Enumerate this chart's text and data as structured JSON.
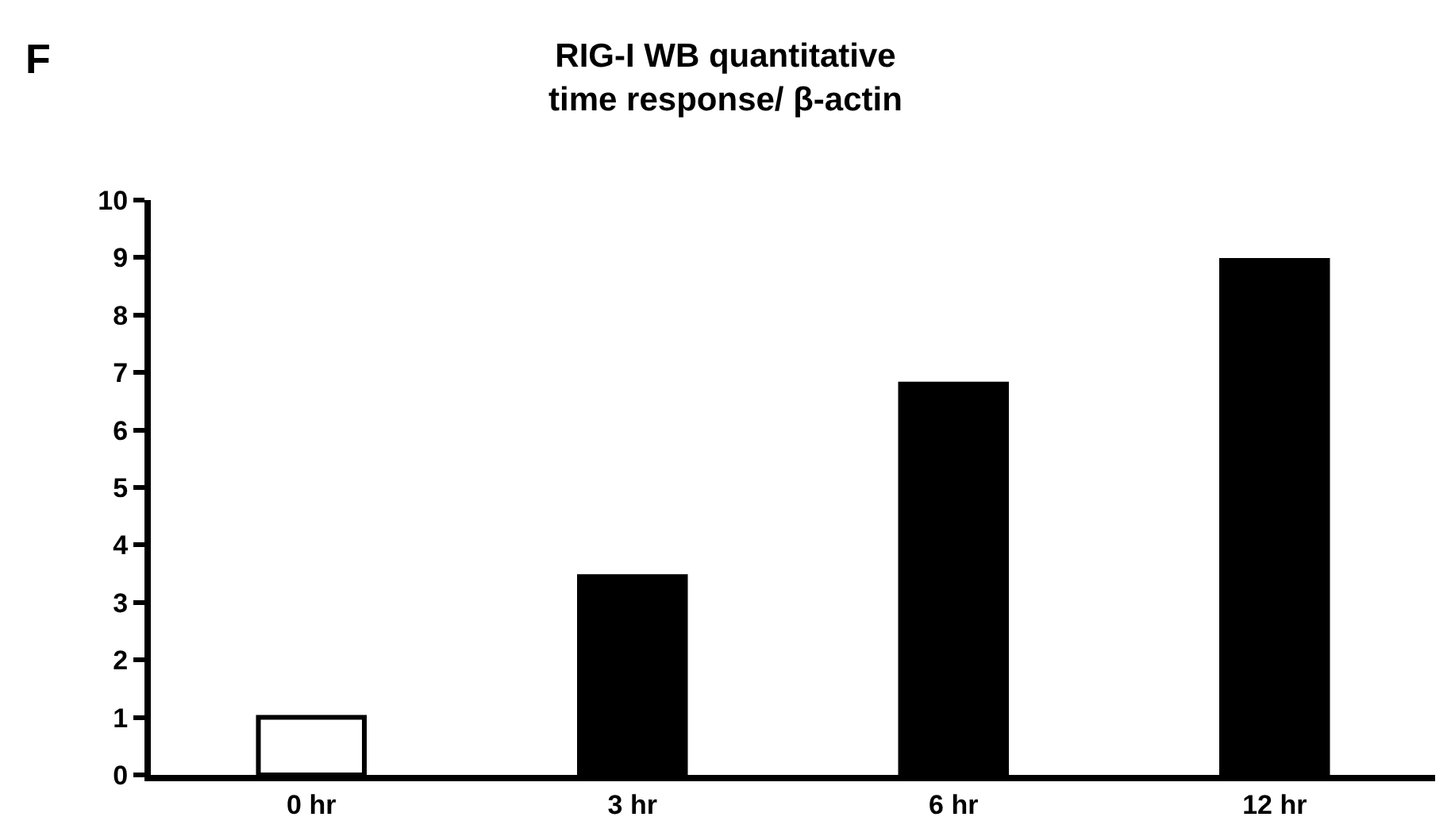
{
  "chart_data": {
    "type": "bar",
    "title": "RIG-I WB quantitative\ntime response/ β-actin",
    "annotations": [
      "F"
    ],
    "categories": [
      "0 hr",
      "3 hr",
      "6 hr",
      "12 hr"
    ],
    "values": [
      1,
      3.45,
      6.8,
      8.95
    ],
    "colors": [
      "#ffffff",
      "#000000",
      "#000000",
      "#000000"
    ],
    "ylim": [
      0,
      10
    ],
    "yticks": [
      0,
      1,
      2,
      3,
      4,
      5,
      6,
      7,
      8,
      9,
      10
    ],
    "grid": false,
    "legend": false
  }
}
